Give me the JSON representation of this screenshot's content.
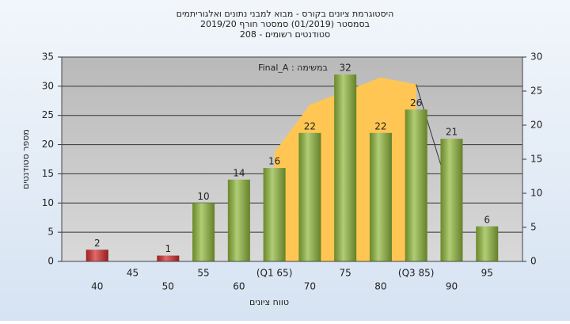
{
  "chart_data": {
    "type": "bar",
    "title": [
      "היסטוגרמת ציונים בקורס - מבוא למבני נתונים ואלגוריתמים",
      "בסמסטר  (01/2019)  סמסטר חורף 2019/20",
      "סטודנטים רשומים - 208"
    ],
    "annotation": "Final_A : במשימה",
    "y_label": "מספר סטודנטים",
    "x_label": "טווח ציונים",
    "categories": [
      "40",
      "45",
      "50",
      "55",
      "60",
      "(Q1 65)",
      "70",
      "75",
      "80",
      "(Q3 85)",
      "90",
      "95"
    ],
    "series": [
      {
        "type": "bar",
        "values": [
          2,
          null,
          1,
          10,
          14,
          16,
          22,
          32,
          22,
          26,
          21,
          6
        ],
        "colors": [
          "#d42a2a",
          null,
          "#d42a2a",
          "#8fb83a",
          "#8fb83a",
          "#8fb83a",
          "#8fb83a",
          "#8fb83a",
          "#8fb83a",
          "#8fb83a",
          "#8fb83a",
          "#8fb83a"
        ]
      },
      {
        "type": "area",
        "axis": "y2",
        "color": "#ffc654",
        "values": [
          null,
          null,
          null,
          null,
          null,
          16,
          23,
          25,
          27,
          26,
          null,
          null
        ]
      },
      {
        "type": "line",
        "axis": "y2",
        "color": "#333333",
        "values": [
          null,
          null,
          null,
          null,
          null,
          null,
          null,
          null,
          null,
          26,
          9,
          null
        ]
      }
    ],
    "ylim": [
      0,
      35
    ],
    "yticks": [
      0,
      5,
      10,
      15,
      20,
      25,
      30,
      35
    ],
    "y2lim": [
      0,
      30
    ],
    "y2ticks": [
      0,
      5,
      10,
      15,
      20,
      25,
      30
    ],
    "grid": true
  }
}
